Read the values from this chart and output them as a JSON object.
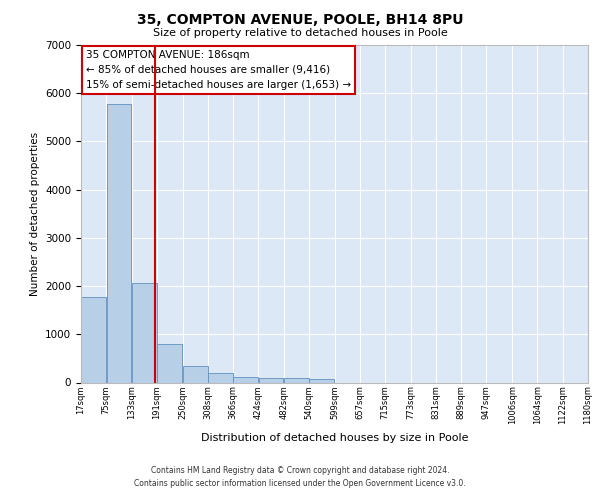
{
  "title_line1": "35, COMPTON AVENUE, POOLE, BH14 8PU",
  "title_line2": "Size of property relative to detached houses in Poole",
  "xlabel": "Distribution of detached houses by size in Poole",
  "ylabel": "Number of detached properties",
  "bar_color": "#b8cfe8",
  "bar_edge_color": "#6090c0",
  "background_color": "#dce8f5",
  "grid_color": "#ffffff",
  "vline_x": 186,
  "vline_color": "#cc0000",
  "annotation_title": "35 COMPTON AVENUE: 186sqm",
  "annotation_line1": "← 85% of detached houses are smaller (9,416)",
  "annotation_line2": "15% of semi-detached houses are larger (1,653) →",
  "annotation_box_color": "#cc0000",
  "bin_edges": [
    17,
    75,
    133,
    191,
    250,
    308,
    366,
    424,
    482,
    540,
    599,
    657,
    715,
    773,
    831,
    889,
    947,
    1006,
    1064,
    1122,
    1180
  ],
  "bin_labels": [
    "17sqm",
    "75sqm",
    "133sqm",
    "191sqm",
    "250sqm",
    "308sqm",
    "366sqm",
    "424sqm",
    "482sqm",
    "540sqm",
    "599sqm",
    "657sqm",
    "715sqm",
    "773sqm",
    "831sqm",
    "889sqm",
    "947sqm",
    "1006sqm",
    "1064sqm",
    "1122sqm",
    "1180sqm"
  ],
  "bar_heights": [
    1780,
    5780,
    2060,
    800,
    340,
    190,
    115,
    95,
    85,
    70,
    0,
    0,
    0,
    0,
    0,
    0,
    0,
    0,
    0,
    0
  ],
  "ylim": [
    0,
    7000
  ],
  "yticks": [
    0,
    1000,
    2000,
    3000,
    4000,
    5000,
    6000,
    7000
  ],
  "footer_line1": "Contains HM Land Registry data © Crown copyright and database right 2024.",
  "footer_line2": "Contains public sector information licensed under the Open Government Licence v3.0."
}
